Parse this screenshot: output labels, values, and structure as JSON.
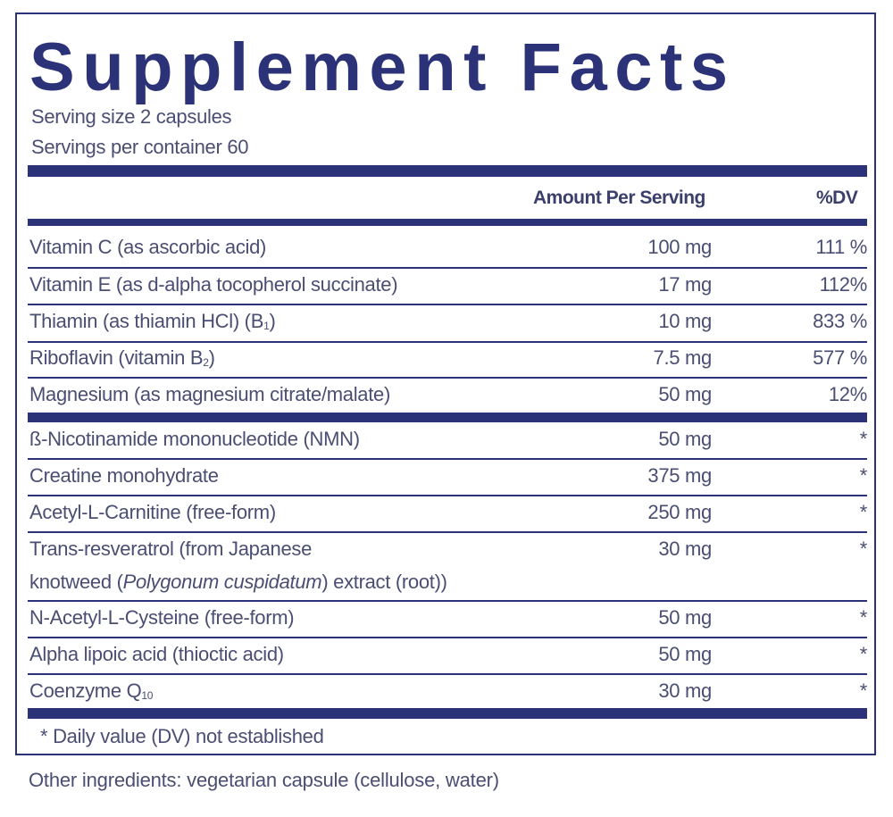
{
  "title": "Supplement Facts",
  "serving_size_label": "Serving size",
  "serving_size_value": "2 capsules",
  "servings_per_container_label": "Servings per container",
  "servings_per_container_value": "60",
  "header": {
    "amount": "Amount Per Serving",
    "dv": "%DV"
  },
  "group1": [
    {
      "name": "Vitamin C (as ascorbic acid)",
      "amount": "100 mg",
      "dv": "111 %"
    },
    {
      "name": "Vitamin E (as d-alpha tocopherol succinate)",
      "amount": "17 mg",
      "dv": "112%"
    },
    {
      "name_pre": "Thiamin (as thiamin HCl) (B",
      "name_sub": "1",
      "name_post": ")",
      "amount": "10 mg",
      "dv": "833 %"
    },
    {
      "name_pre": "Riboflavin (vitamin B",
      "name_sub": "2",
      "name_post": ")",
      "amount": "7.5 mg",
      "dv": "577 %"
    },
    {
      "name": "Magnesium (as magnesium citrate/malate)",
      "amount": "50 mg",
      "dv": "12%"
    }
  ],
  "group2": [
    {
      "name": "ß-Nicotinamide mononucleotide (NMN)",
      "amount": "50 mg",
      "dv": "*"
    },
    {
      "name": "Creatine monohydrate",
      "amount": "375 mg",
      "dv": "*"
    },
    {
      "name": "Acetyl-L-Carnitine (free-form)",
      "amount": "250 mg",
      "dv": "*"
    },
    {
      "name_line1": "Trans-resveratrol  (from Japanese",
      "name_line2_pre": "knotweed (",
      "name_line2_italic": "Polygonum cuspidatum",
      "name_line2_post": ") extract (root))",
      "amount": "30 mg",
      "dv": "*"
    },
    {
      "name": "N-Acetyl-L-Cysteine (free-form)",
      "amount": "50 mg",
      "dv": "*"
    },
    {
      "name": "Alpha lipoic acid (thioctic acid)",
      "amount": "50 mg",
      "dv": "*"
    },
    {
      "name_pre": "Coenzyme Q",
      "name_sub": "10",
      "name_post": "",
      "amount": "30 mg",
      "dv": "*"
    }
  ],
  "footnote": "*  Daily value (DV) not established",
  "other_ingredients": "Other ingredients: vegetarian capsule (cellulose, water)",
  "colors": {
    "brand": "#2b3278",
    "text": "#4a4e72"
  }
}
